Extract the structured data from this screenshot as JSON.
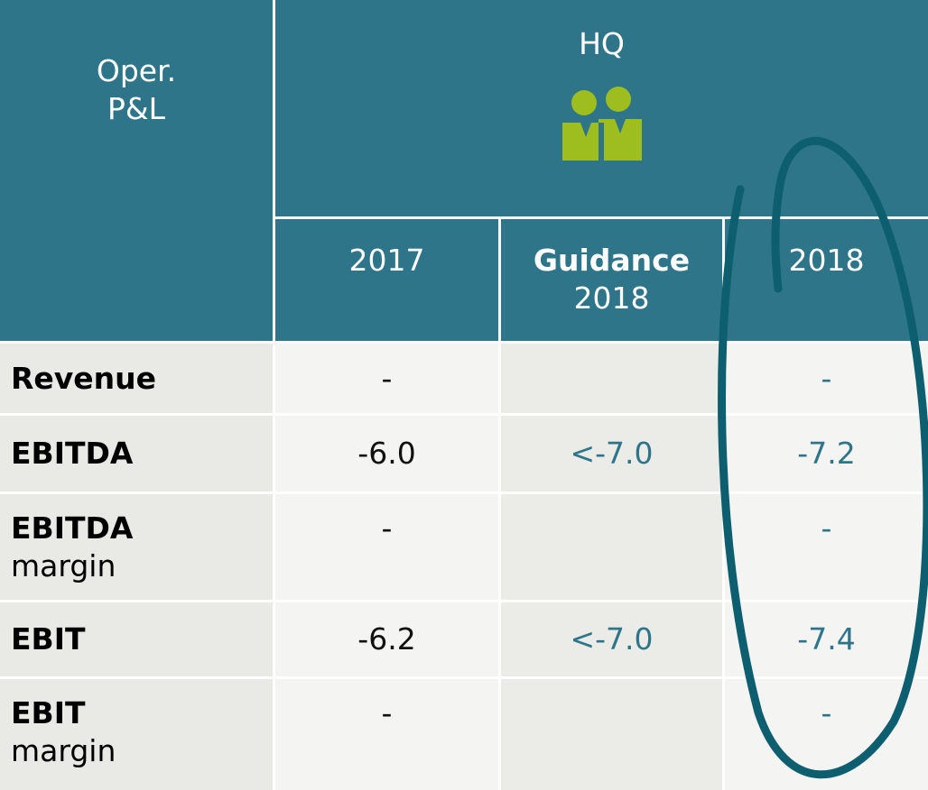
{
  "table": {
    "corner": [
      "Oper.",
      "P&L"
    ],
    "group": "HQ",
    "columns": [
      [
        "2017"
      ],
      [
        "Guidance",
        "2018"
      ],
      [
        "2018"
      ]
    ],
    "rows": [
      {
        "label": [
          "Revenue"
        ],
        "cells": [
          "-",
          null,
          "-"
        ]
      },
      {
        "label": [
          "EBITDA"
        ],
        "cells": [
          "-6.0",
          "<-7.0",
          "-7.2"
        ]
      },
      {
        "label": [
          "EBITDA",
          "margin"
        ],
        "cells": [
          "-",
          null,
          "-"
        ]
      },
      {
        "label": [
          "EBIT"
        ],
        "cells": [
          "-6.2",
          "<-7.0",
          "-7.4"
        ]
      },
      {
        "label": [
          "EBIT",
          "margin"
        ],
        "cells": [
          "-",
          null,
          "-"
        ]
      }
    ]
  }
}
